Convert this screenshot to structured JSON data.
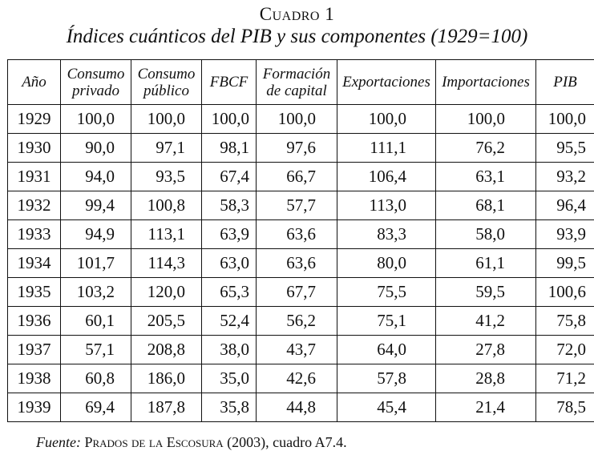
{
  "caption": {
    "label": "Cuadro 1",
    "title": "Índices cuánticos del PIB y sus componentes (1929=100)"
  },
  "table": {
    "headers": [
      "Año",
      "Consumo privado",
      "Consumo público",
      "FBCF",
      "Formación de capital",
      "Exportaciones",
      "Importaciones",
      "PIB"
    ],
    "rows": [
      [
        "1929",
        "100,0",
        "100,0",
        "100,0",
        "100,0",
        "100,0",
        "100,0",
        "100,0"
      ],
      [
        "1930",
        "90,0",
        "97,1",
        "98,1",
        "97,6",
        "111,1",
        "76,2",
        "95,5"
      ],
      [
        "1931",
        "94,0",
        "93,5",
        "67,4",
        "66,7",
        "106,4",
        "63,1",
        "93,2"
      ],
      [
        "1932",
        "99,4",
        "100,8",
        "58,3",
        "57,7",
        "113,0",
        "68,1",
        "96,4"
      ],
      [
        "1933",
        "94,9",
        "113,1",
        "63,9",
        "63,6",
        "83,3",
        "58,0",
        "93,9"
      ],
      [
        "1934",
        "101,7",
        "114,3",
        "63,0",
        "63,6",
        "80,0",
        "61,1",
        "99,5"
      ],
      [
        "1935",
        "103,2",
        "120,0",
        "65,3",
        "67,7",
        "75,5",
        "59,5",
        "100,6"
      ],
      [
        "1936",
        "60,1",
        "205,5",
        "52,4",
        "56,2",
        "75,1",
        "41,2",
        "75,8"
      ],
      [
        "1937",
        "57,1",
        "208,8",
        "38,0",
        "43,7",
        "64,0",
        "27,8",
        "72,0"
      ],
      [
        "1938",
        "60,8",
        "186,0",
        "35,0",
        "42,6",
        "57,8",
        "28,8",
        "71,2"
      ],
      [
        "1939",
        "69,4",
        "187,8",
        "35,8",
        "44,8",
        "45,4",
        "21,4",
        "78,5"
      ]
    ]
  },
  "source": {
    "label": "Fuente:",
    "author": "Prados de la Escosura",
    "rest": " (2003), cuadro A7.4."
  }
}
